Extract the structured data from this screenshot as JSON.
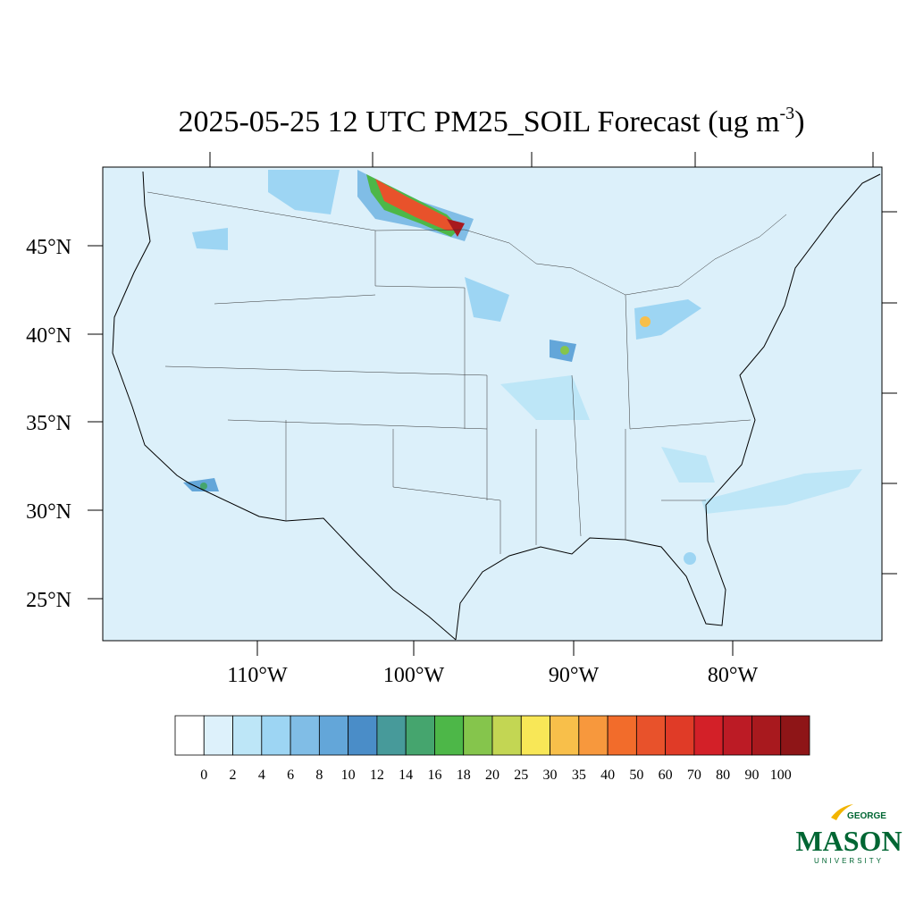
{
  "map": {
    "title": {
      "main": "2025-05-25 12 UTC PM25_SOIL Forecast (ug m",
      "sup": "-3",
      "close": ")"
    },
    "lat_labels": [
      "45°N",
      "40°N",
      "35°N",
      "30°N",
      "25°N"
    ],
    "lon_labels": [
      "110°W",
      "100°W",
      "90°W",
      "80°W"
    ],
    "colorbar": {
      "levels": [
        0,
        2,
        4,
        6,
        8,
        10,
        12,
        14,
        16,
        18,
        20,
        25,
        30,
        35,
        40,
        50,
        60,
        70,
        80,
        90,
        100
      ],
      "colors": [
        "#ffffff",
        "#ddf1fb",
        "#bde6f7",
        "#9dd5f3",
        "#80bde6",
        "#63a6d9",
        "#4a8dc8",
        "#479a9a",
        "#45a56e",
        "#4db748",
        "#85c54c",
        "#c3d653",
        "#f8e757",
        "#f8bf4a",
        "#f7983d",
        "#f26c2b",
        "#e8522b",
        "#e03b27",
        "#d32028",
        "#bc1b25",
        "#a8191e",
        "#8e1517"
      ]
    },
    "logo": {
      "top": "GEORGE",
      "main": "MASON",
      "bottom": "UNIVERSITY"
    }
  }
}
